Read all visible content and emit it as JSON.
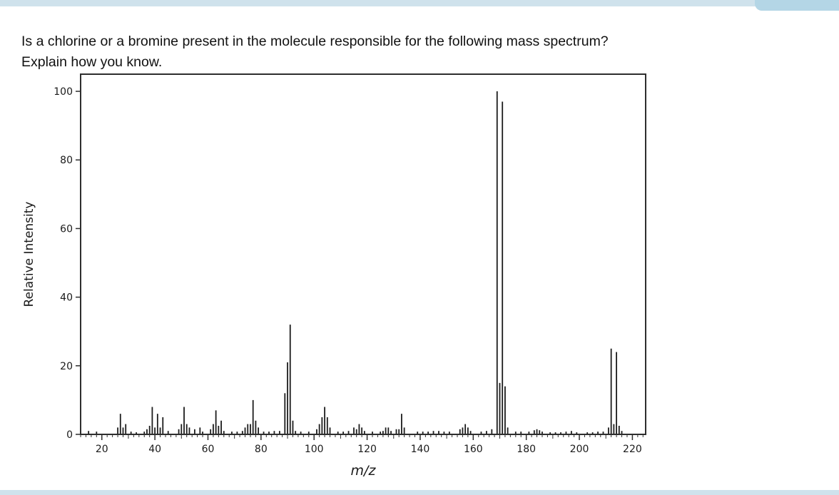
{
  "question": {
    "line1": "Is a chlorine or a bromine present in the molecule responsible for the following mass spectrum?",
    "line2": "Explain how you know."
  },
  "colors": {
    "strip": "#cfe2ec",
    "tab": "#b4d6e6",
    "bar": "#1c1c1c",
    "axis": "#2e2e2e"
  },
  "chart_data": {
    "type": "bar",
    "title": "",
    "xlabel": "m/z",
    "ylabel": "Relative Intensity",
    "xlim": [
      12,
      225
    ],
    "ylim": [
      0,
      105
    ],
    "x_ticks": [
      20,
      40,
      60,
      80,
      100,
      120,
      140,
      160,
      180,
      200,
      220
    ],
    "y_ticks": [
      0,
      20,
      40,
      60,
      80,
      100
    ],
    "grid": false,
    "legend": "none",
    "peaks": [
      [
        15,
        1
      ],
      [
        18,
        0.8
      ],
      [
        26,
        2
      ],
      [
        27,
        6
      ],
      [
        28,
        2
      ],
      [
        29,
        3
      ],
      [
        31,
        0.8
      ],
      [
        33,
        0.6
      ],
      [
        36,
        0.8
      ],
      [
        37,
        1.5
      ],
      [
        38,
        2.5
      ],
      [
        39,
        8
      ],
      [
        40,
        2
      ],
      [
        41,
        6
      ],
      [
        42,
        2
      ],
      [
        43,
        5
      ],
      [
        45,
        1
      ],
      [
        49,
        1.5
      ],
      [
        50,
        3
      ],
      [
        51,
        8
      ],
      [
        52,
        3
      ],
      [
        53,
        2
      ],
      [
        55,
        1.5
      ],
      [
        57,
        2
      ],
      [
        58,
        0.8
      ],
      [
        61,
        1.5
      ],
      [
        62,
        3
      ],
      [
        63,
        7
      ],
      [
        64,
        2.5
      ],
      [
        65,
        4
      ],
      [
        66,
        1
      ],
      [
        69,
        0.8
      ],
      [
        71,
        0.8
      ],
      [
        73,
        1
      ],
      [
        74,
        2
      ],
      [
        75,
        3
      ],
      [
        76,
        3
      ],
      [
        77,
        10
      ],
      [
        78,
        4
      ],
      [
        79,
        2
      ],
      [
        81,
        0.8
      ],
      [
        83,
        0.8
      ],
      [
        85,
        1
      ],
      [
        87,
        1
      ],
      [
        89,
        12
      ],
      [
        90,
        21
      ],
      [
        91,
        32
      ],
      [
        92,
        4
      ],
      [
        93,
        1
      ],
      [
        95,
        0.8
      ],
      [
        98,
        0.8
      ],
      [
        101,
        1.5
      ],
      [
        102,
        3
      ],
      [
        103,
        5
      ],
      [
        104,
        8
      ],
      [
        105,
        5
      ],
      [
        106,
        2
      ],
      [
        109,
        0.8
      ],
      [
        111,
        0.8
      ],
      [
        113,
        1
      ],
      [
        115,
        2
      ],
      [
        116,
        1.5
      ],
      [
        117,
        3
      ],
      [
        118,
        2
      ],
      [
        119,
        1
      ],
      [
        122,
        0.8
      ],
      [
        125,
        0.8
      ],
      [
        126,
        1
      ],
      [
        127,
        2
      ],
      [
        128,
        2
      ],
      [
        129,
        1
      ],
      [
        131,
        1.5
      ],
      [
        132,
        1.5
      ],
      [
        133,
        6
      ],
      [
        134,
        2
      ],
      [
        139,
        0.8
      ],
      [
        141,
        0.8
      ],
      [
        143,
        0.8
      ],
      [
        145,
        1
      ],
      [
        147,
        1
      ],
      [
        149,
        0.8
      ],
      [
        151,
        0.8
      ],
      [
        155,
        1.5
      ],
      [
        156,
        2
      ],
      [
        157,
        3
      ],
      [
        158,
        2
      ],
      [
        159,
        1
      ],
      [
        163,
        0.8
      ],
      [
        165,
        1
      ],
      [
        167,
        1.5
      ],
      [
        169,
        100
      ],
      [
        170,
        15
      ],
      [
        171,
        97
      ],
      [
        172,
        14
      ],
      [
        173,
        2
      ],
      [
        176,
        0.8
      ],
      [
        178,
        0.8
      ],
      [
        181,
        0.8
      ],
      [
        183,
        1.2
      ],
      [
        184,
        1.5
      ],
      [
        185,
        1.2
      ],
      [
        186,
        0.8
      ],
      [
        189,
        0.6
      ],
      [
        191,
        0.6
      ],
      [
        193,
        0.6
      ],
      [
        195,
        0.8
      ],
      [
        197,
        1
      ],
      [
        199,
        0.6
      ],
      [
        203,
        0.6
      ],
      [
        205,
        0.6
      ],
      [
        207,
        0.8
      ],
      [
        209,
        0.8
      ],
      [
        211,
        2
      ],
      [
        212,
        25
      ],
      [
        213,
        3
      ],
      [
        214,
        24
      ],
      [
        215,
        2.5
      ],
      [
        216,
        1
      ]
    ]
  }
}
